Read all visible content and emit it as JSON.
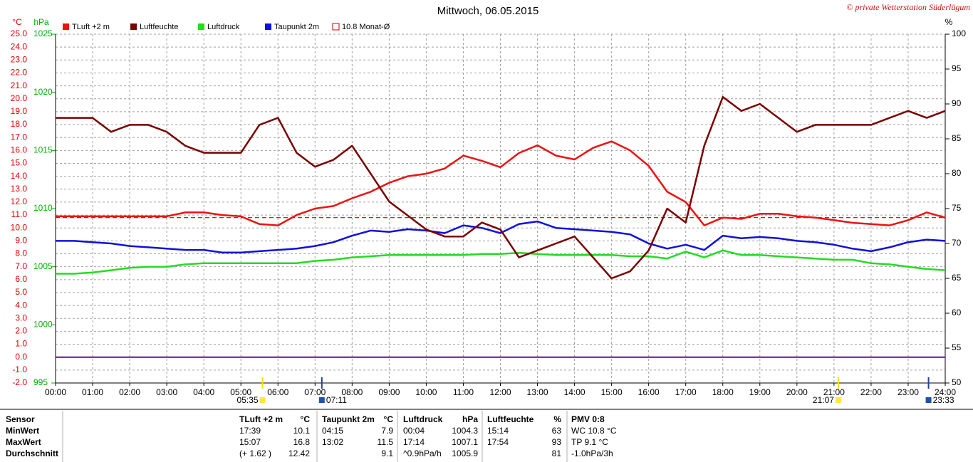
{
  "chart_data": {
    "type": "line",
    "title": "Mittwoch, 06.05.2015",
    "credit": "© private Wetterstation Süderlügum",
    "y_unit": "°C",
    "y3_unit": "hPa",
    "y2_unit": "%",
    "x": [
      0,
      0.5,
      1,
      1.5,
      2,
      2.5,
      3,
      3.5,
      4,
      4.5,
      5,
      5.5,
      6,
      6.5,
      7,
      7.5,
      8,
      8.5,
      9,
      9.5,
      10,
      10.5,
      11,
      11.5,
      12,
      12.5,
      13,
      13.5,
      14,
      14.5,
      15,
      15.5,
      16,
      16.5,
      17,
      17.5,
      18,
      18.5,
      19,
      19.5,
      20,
      20.5,
      21,
      21.5,
      22,
      22.5,
      23,
      23.5,
      24
    ],
    "xlim": [
      0,
      24
    ],
    "xticks": [
      {
        "value": 0,
        "label": "00:00"
      },
      {
        "value": 1,
        "label": "01:00"
      },
      {
        "value": 2,
        "label": "02:00"
      },
      {
        "value": 3,
        "label": "03:00"
      },
      {
        "value": 4,
        "label": "04:00"
      },
      {
        "value": 5,
        "label": "05:00"
      },
      {
        "value": 6,
        "label": "06:00"
      },
      {
        "value": 7,
        "label": "07:00"
      },
      {
        "value": 8,
        "label": "08:00"
      },
      {
        "value": 9,
        "label": "09:00"
      },
      {
        "value": 10,
        "label": "10:00"
      },
      {
        "value": 11,
        "label": "11:00"
      },
      {
        "value": 12,
        "label": "12:00"
      },
      {
        "value": 13,
        "label": "13:00"
      },
      {
        "value": 14,
        "label": "14:00"
      },
      {
        "value": 15,
        "label": "15:00"
      },
      {
        "value": 16,
        "label": "16:00"
      },
      {
        "value": 17,
        "label": "17:00"
      },
      {
        "value": 18,
        "label": "18:00"
      },
      {
        "value": 19,
        "label": "19:00"
      },
      {
        "value": 20,
        "label": "20:00"
      },
      {
        "value": 21,
        "label": "21:00"
      },
      {
        "value": 22,
        "label": "22:00"
      },
      {
        "value": 23,
        "label": "23:00"
      },
      {
        "value": 24,
        "label": "24:00"
      }
    ],
    "ylim": [
      -2,
      25
    ],
    "yticks": [
      {
        "value": -2,
        "label": "-2.0"
      },
      {
        "value": -1,
        "label": "-1.0"
      },
      {
        "value": 0,
        "label": "0.0"
      },
      {
        "value": 1,
        "label": "1.0"
      },
      {
        "value": 2,
        "label": "2.0"
      },
      {
        "value": 3,
        "label": "3.0"
      },
      {
        "value": 4,
        "label": "4.0"
      },
      {
        "value": 5,
        "label": "5.0"
      },
      {
        "value": 6,
        "label": "6.0"
      },
      {
        "value": 7,
        "label": "7.0"
      },
      {
        "value": 8,
        "label": "8.0"
      },
      {
        "value": 9,
        "label": "9.0"
      },
      {
        "value": 10,
        "label": "10.0"
      },
      {
        "value": 11,
        "label": "11.0"
      },
      {
        "value": 12,
        "label": "12.0"
      },
      {
        "value": 13,
        "label": "13.0"
      },
      {
        "value": 14,
        "label": "14.0"
      },
      {
        "value": 15,
        "label": "15.0"
      },
      {
        "value": 16,
        "label": "16.0"
      },
      {
        "value": 17,
        "label": "17.0"
      },
      {
        "value": 18,
        "label": "18.0"
      },
      {
        "value": 19,
        "label": "19.0"
      },
      {
        "value": 20,
        "label": "20.0"
      },
      {
        "value": 21,
        "label": "21.0"
      },
      {
        "value": 22,
        "label": "22.0"
      },
      {
        "value": 23,
        "label": "23.0"
      },
      {
        "value": 24,
        "label": "24.0"
      },
      {
        "value": 25,
        "label": "25.0"
      }
    ],
    "y3lim": [
      995,
      1025
    ],
    "y3ticks": [
      995,
      1000,
      1005,
      1010,
      1015,
      1020,
      1025
    ],
    "y2lim": [
      50,
      100
    ],
    "y2ticks": [
      50,
      55,
      60,
      65,
      70,
      75,
      80,
      85,
      90,
      95,
      100
    ],
    "grid": true,
    "zero_line": {
      "value": 0,
      "color": "#8000a0"
    },
    "series": [
      {
        "name": "TLuft +2 m",
        "color": "#ee1111",
        "axis": "y",
        "values": [
          10.9,
          10.9,
          10.9,
          10.9,
          10.9,
          10.9,
          10.9,
          11.2,
          11.2,
          11.0,
          10.9,
          10.3,
          10.2,
          11.0,
          11.5,
          11.7,
          12.3,
          12.8,
          13.5,
          14.0,
          14.2,
          14.6,
          15.6,
          15.2,
          14.7,
          15.8,
          16.4,
          15.6,
          15.3,
          16.2,
          16.7,
          16.0,
          14.8,
          12.8,
          12.0,
          10.2,
          10.8,
          10.7,
          11.1,
          11.1,
          10.9,
          10.8,
          10.6,
          10.4,
          10.3,
          10.2,
          10.6,
          11.2,
          10.8
        ]
      },
      {
        "name": "Luftfeuchte",
        "color": "#7a0000",
        "axis": "y2",
        "values": [
          88,
          88,
          88,
          86,
          87,
          87,
          86,
          84,
          83,
          83,
          83,
          87,
          88,
          83,
          81,
          82,
          84,
          80,
          76,
          74,
          72,
          71,
          71,
          73,
          72,
          68,
          69,
          70,
          71,
          68,
          65,
          66,
          69,
          75,
          73,
          84,
          91,
          89,
          90,
          88,
          86,
          87,
          87,
          87,
          87,
          88,
          89,
          88,
          89
        ]
      },
      {
        "name": "Luftdruck",
        "color": "#22dd22",
        "axis": "y3",
        "values": [
          1004.4,
          1004.4,
          1004.5,
          1004.7,
          1004.9,
          1005.0,
          1005.0,
          1005.2,
          1005.3,
          1005.3,
          1005.3,
          1005.3,
          1005.3,
          1005.3,
          1005.5,
          1005.6,
          1005.8,
          1005.9,
          1006.0,
          1006.0,
          1006.0,
          1006.0,
          1006.0,
          1006.1,
          1006.1,
          1006.2,
          1006.1,
          1006.0,
          1006.0,
          1006.0,
          1006.0,
          1005.9,
          1005.9,
          1005.7,
          1006.3,
          1005.8,
          1006.4,
          1006.0,
          1006.0,
          1005.9,
          1005.8,
          1005.7,
          1005.6,
          1005.6,
          1005.3,
          1005.2,
          1005.0,
          1004.8,
          1004.7
        ]
      },
      {
        "name": "Taupunkt 2m",
        "color": "#1010dd",
        "axis": "y",
        "values": [
          9.0,
          9.0,
          8.9,
          8.8,
          8.6,
          8.5,
          8.4,
          8.3,
          8.3,
          8.1,
          8.1,
          8.2,
          8.3,
          8.4,
          8.6,
          8.9,
          9.4,
          9.8,
          9.7,
          9.9,
          9.8,
          9.6,
          10.2,
          10.0,
          9.6,
          10.3,
          10.5,
          10.0,
          9.9,
          9.8,
          9.7,
          9.5,
          8.8,
          8.4,
          8.7,
          8.3,
          9.4,
          9.2,
          9.3,
          9.2,
          9.0,
          8.9,
          8.7,
          8.4,
          8.2,
          8.5,
          8.9,
          9.1,
          9.0
        ]
      }
    ],
    "reference_line": {
      "name": "10.8 Monat-Ø",
      "color": "#cc0000",
      "value": 10.8,
      "axis": "y"
    },
    "sun_moon_times": [
      {
        "value": 5.583,
        "label": "05:35"
      },
      {
        "value": 7.183,
        "label": "07:11"
      },
      {
        "value": 21.117,
        "label": "21:07"
      },
      {
        "value": 23.55,
        "label": "23:33"
      }
    ]
  },
  "stats_table": {
    "header": [
      "Sensor",
      "TLuft +2 m",
      "°C",
      "Taupunkt 2m",
      "°C",
      "Luftdruck",
      "hPa",
      "Luftfeuchte",
      "%",
      "PMV 0:8"
    ],
    "rows": [
      [
        "MinWert",
        "17:39",
        "10.1",
        "04:15",
        "7.9",
        "00:04",
        "1004.3",
        "15:14",
        "63",
        "WC 10.8 °C"
      ],
      [
        "MaxWert",
        "15:07",
        "16.8",
        "13:02",
        "11.5",
        "17:14",
        "1007.1",
        "17:54",
        "93",
        "TP 9.1 °C"
      ],
      [
        "Durchschnitt",
        "(+ 1.62 )",
        "12.42",
        null,
        "9.1",
        "^0.9hPa/h",
        "1005.9",
        null,
        "81",
        "-1.0hPa/3h"
      ]
    ]
  }
}
